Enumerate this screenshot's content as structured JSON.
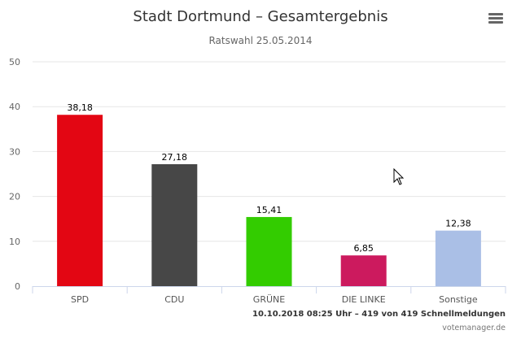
{
  "chart_data": {
    "type": "bar",
    "title": "Stadt Dortmund – Gesamtergebnis",
    "subtitle": "Ratswahl 25.05.2014",
    "categories": [
      "SPD",
      "CDU",
      "GRÜNE",
      "DIE LINKE",
      "Sonstige"
    ],
    "values": [
      38.18,
      27.18,
      15.41,
      6.85,
      12.38
    ],
    "data_labels": [
      "38,18",
      "27,18",
      "15,41",
      "6,85",
      "12,38"
    ],
    "colors": [
      "#e30613",
      "#474747",
      "#33cc00",
      "#cc1a5e",
      "#aabfe6"
    ],
    "ylim": [
      0,
      50
    ],
    "yticks": [
      0,
      10,
      20,
      30,
      40,
      50
    ],
    "grid": true,
    "xlabel": "",
    "ylabel": ""
  },
  "credits": {
    "status": "10.10.2018 08:25 Uhr – 419 von 419 Schnellmeldungen",
    "source": "votemanager.de"
  },
  "menu_icon": "hamburger-menu-icon"
}
